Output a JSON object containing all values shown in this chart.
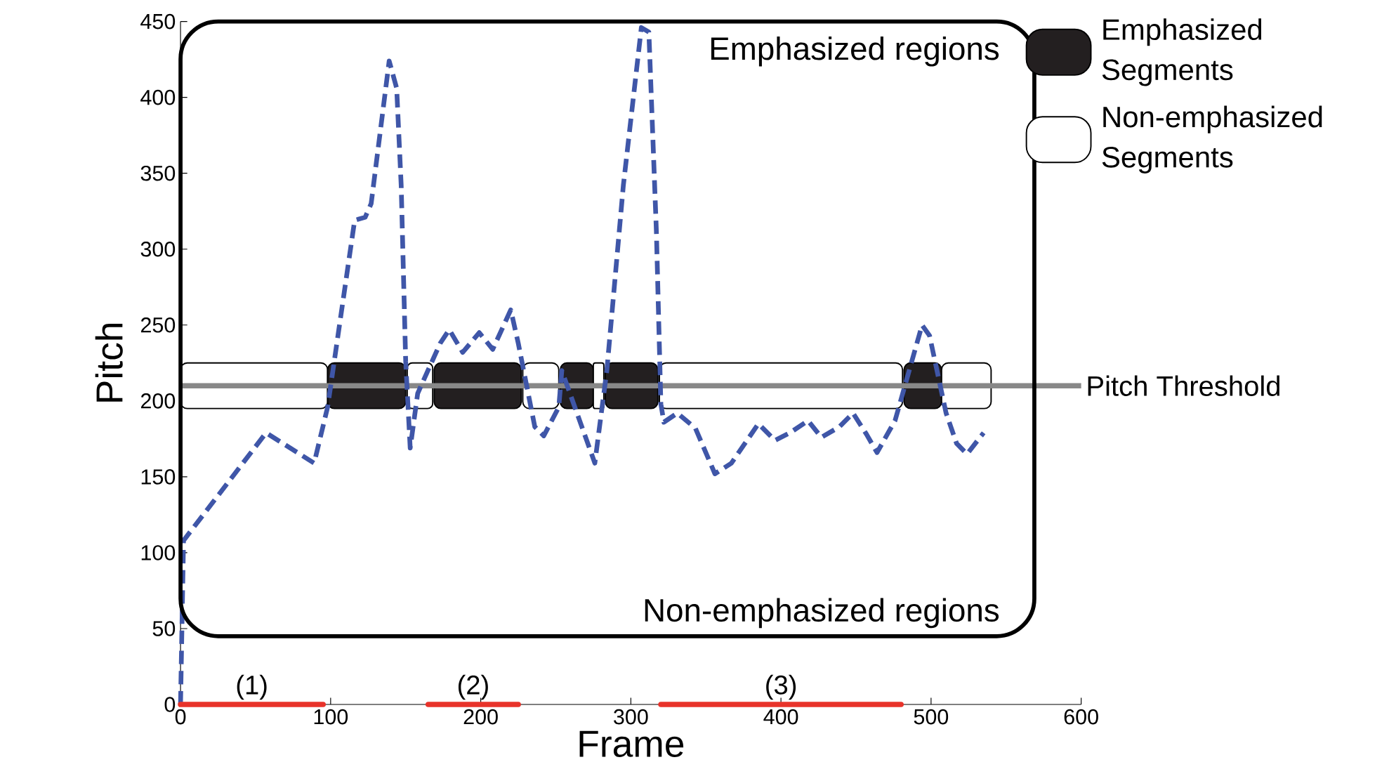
{
  "chart_data": {
    "type": "line",
    "xlabel": "Frame",
    "ylabel": "Pitch",
    "xlim": [
      0,
      600
    ],
    "ylim": [
      0,
      450
    ],
    "xticks": [
      0,
      100,
      200,
      300,
      400,
      500,
      600
    ],
    "yticks": [
      0,
      50,
      100,
      150,
      200,
      250,
      300,
      350,
      400,
      450
    ],
    "series": [
      {
        "color": "#3f56a8",
        "line_style": "dashed",
        "x": [
          0,
          2,
          57,
          89,
          98,
          116,
          123,
          127,
          139,
          144,
          147,
          150,
          153,
          158,
          173,
          179,
          188,
          199,
          208,
          220,
          225,
          236,
          242,
          252,
          254,
          276,
          284,
          295,
          307,
          312,
          317,
          320,
          322,
          331,
          343,
          356,
          367,
          385,
          396,
          406,
          418,
          427,
          439,
          448,
          457,
          464,
          476,
          494,
          499,
          510,
          517,
          524,
          535
        ],
        "values": [
          0,
          108,
          179,
          159,
          196,
          319,
          321,
          330,
          424,
          406,
          342,
          226,
          169,
          205,
          238,
          247,
          232,
          245,
          234,
          260,
          238,
          183,
          177,
          196,
          220,
          159,
          220,
          342,
          446,
          443,
          312,
          198,
          186,
          192,
          182,
          152,
          159,
          185,
          174,
          179,
          187,
          176,
          183,
          192,
          178,
          166,
          187,
          250,
          243,
          192,
          172,
          165,
          179
        ]
      },
      {
        "color": "#e8332a",
        "x": [
          0,
          95
        ],
        "values": [
          0,
          0
        ]
      },
      {
        "color": "#e8332a",
        "x": [
          165,
          225
        ],
        "values": [
          0,
          0
        ]
      },
      {
        "color": "#e8332a",
        "x": [
          320,
          480
        ],
        "values": [
          0,
          0
        ]
      }
    ],
    "ref_lines": [
      {
        "axis": "y",
        "value": 210,
        "label": "Pitch Threshold",
        "color": "#888888"
      }
    ],
    "bands": [
      {
        "axis": "x",
        "from": 0,
        "to": 98,
        "color": "#ffffff"
      },
      {
        "axis": "x",
        "from": 98,
        "to": 150,
        "color": "#231f20"
      },
      {
        "axis": "x",
        "from": 151,
        "to": 168,
        "color": "#ffffff"
      },
      {
        "axis": "x",
        "from": 169,
        "to": 227,
        "color": "#231f20"
      },
      {
        "axis": "x",
        "from": 228,
        "to": 252,
        "color": "#ffffff"
      },
      {
        "axis": "x",
        "from": 253,
        "to": 275,
        "color": "#231f20"
      },
      {
        "axis": "x",
        "from": 275,
        "to": 282,
        "color": "#ffffff"
      },
      {
        "axis": "x",
        "from": 283,
        "to": 318,
        "color": "#231f20"
      },
      {
        "axis": "x",
        "from": 319,
        "to": 481,
        "color": "#ffffff"
      },
      {
        "axis": "x",
        "from": 482,
        "to": 507,
        "color": "#231f20"
      },
      {
        "axis": "x",
        "from": 507,
        "to": 540,
        "color": "#ffffff"
      }
    ],
    "annotations": [
      "Emphasized regions",
      "Non-emphasized regions",
      "Emphasized Segments",
      "Non-emphasized Segments",
      {
        "text": "(1)",
        "x": 47.5,
        "y": 0
      },
      {
        "text": "(2)",
        "x": 195,
        "y": 0
      },
      {
        "text": "(3)",
        "x": 400,
        "y": 0
      }
    ]
  }
}
